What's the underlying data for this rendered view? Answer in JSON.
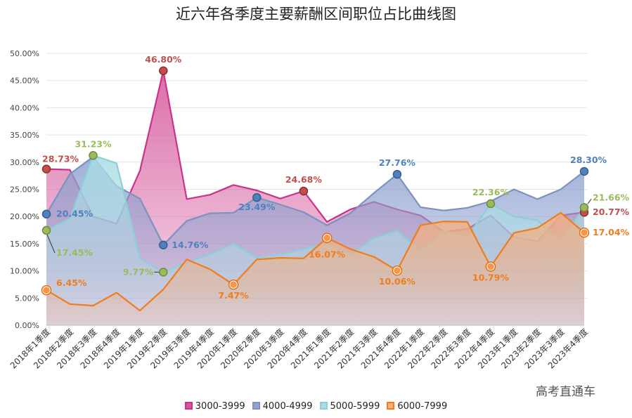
{
  "title": "近六年各季度主要薪酬区间职位占比曲线图",
  "watermark": "高考直通车",
  "chart_data": {
    "type": "area",
    "categories": [
      "2018年1季度",
      "2018年2季度",
      "2018年3季度",
      "2018年4季度",
      "2019年1季度",
      "2019年2季度",
      "2019年3季度",
      "2019年4季度",
      "2020年1季度",
      "2020年2季度",
      "2020年3季度",
      "2020年4季度",
      "2021年1季度",
      "2021年2季度",
      "2021年3季度",
      "2021年4季度",
      "2022年1季度",
      "2022年2季度",
      "2022年3季度",
      "2022年4季度",
      "2023年1季度",
      "2023年2季度",
      "2023年3季度",
      "2023年4季度"
    ],
    "yticks": [
      "0.00%",
      "5.00%",
      "10.00%",
      "15.00%",
      "20.00%",
      "25.00%",
      "30.00%",
      "35.00%",
      "40.00%",
      "45.00%",
      "50.00%"
    ],
    "ylim": [
      0,
      50
    ],
    "grid": true,
    "legend_position": "bottom",
    "series": [
      {
        "name": "3000-3999",
        "color": "#c9338a",
        "fill": "#d4559a",
        "values": [
          28.73,
          28.6,
          20.0,
          18.7,
          28.4,
          46.8,
          23.2,
          24.0,
          25.8,
          24.8,
          23.3,
          24.68,
          19.0,
          21.3,
          22.7,
          21.3,
          20.2,
          17.2,
          17.7,
          20.2,
          16.2,
          15.4,
          20.2,
          20.77
        ]
      },
      {
        "name": "4000-4999",
        "color": "#7d92c2",
        "fill": "#8fa1cf",
        "values": [
          20.45,
          27.8,
          31.0,
          25.6,
          23.3,
          14.76,
          19.2,
          20.6,
          20.7,
          23.49,
          22.2,
          20.8,
          18.4,
          20.6,
          24.3,
          27.76,
          21.7,
          21.1,
          21.6,
          22.8,
          25.0,
          23.2,
          25.0,
          28.3
        ]
      },
      {
        "name": "5000-5999",
        "color": "#8ccfd9",
        "fill": "#a9dde5",
        "values": [
          17.45,
          19.6,
          31.23,
          29.8,
          12.3,
          9.77,
          11.5,
          13.0,
          15.0,
          12.4,
          13.0,
          14.0,
          15.0,
          13.0,
          16.0,
          17.4,
          13.7,
          17.4,
          16.3,
          22.36,
          20.0,
          19.3,
          15.4,
          21.66
        ]
      },
      {
        "name": "6000-7999",
        "color": "#ee7d1e",
        "fill": "#f3b07e",
        "values": [
          6.45,
          3.9,
          3.6,
          6.0,
          2.7,
          6.6,
          12.1,
          10.3,
          7.47,
          12.1,
          12.4,
          12.3,
          16.07,
          14.0,
          12.6,
          10.06,
          18.4,
          19.1,
          19.0,
          10.79,
          17.0,
          17.9,
          20.7,
          17.04
        ]
      }
    ],
    "annotations": [
      {
        "series": 0,
        "index": 0,
        "text": "28.73%",
        "color": "#c0504d"
      },
      {
        "series": 0,
        "index": 5,
        "text": "46.80%",
        "color": "#c0504d"
      },
      {
        "series": 0,
        "index": 11,
        "text": "24.68%",
        "color": "#c0504d"
      },
      {
        "series": 0,
        "index": 23,
        "text": "20.77%",
        "color": "#c0504d"
      },
      {
        "series": 1,
        "index": 0,
        "text": "20.45%",
        "color": "#4f81bd"
      },
      {
        "series": 1,
        "index": 5,
        "text": "14.76%",
        "color": "#4f81bd"
      },
      {
        "series": 1,
        "index": 9,
        "text": "23.49%",
        "color": "#4f81bd"
      },
      {
        "series": 1,
        "index": 15,
        "text": "27.76%",
        "color": "#4f81bd"
      },
      {
        "series": 1,
        "index": 23,
        "text": "28.30%",
        "color": "#4f81bd"
      },
      {
        "series": 2,
        "index": 0,
        "text": "17.45%",
        "color": "#9bbb59"
      },
      {
        "series": 2,
        "index": 2,
        "text": "31.23%",
        "color": "#9bbb59"
      },
      {
        "series": 2,
        "index": 5,
        "text": "9.77%",
        "color": "#9bbb59"
      },
      {
        "series": 2,
        "index": 19,
        "text": "22.36%",
        "color": "#9bbb59"
      },
      {
        "series": 2,
        "index": 23,
        "text": "21.66%",
        "color": "#9bbb59"
      },
      {
        "series": 3,
        "index": 0,
        "text": "6.45%",
        "color": "#ee7d1e"
      },
      {
        "series": 3,
        "index": 8,
        "text": "7.47%",
        "color": "#ee7d1e"
      },
      {
        "series": 3,
        "index": 12,
        "text": "16.07%",
        "color": "#ee7d1e"
      },
      {
        "series": 3,
        "index": 15,
        "text": "10.06%",
        "color": "#ee7d1e"
      },
      {
        "series": 3,
        "index": 19,
        "text": "10.79%",
        "color": "#ee7d1e"
      },
      {
        "series": 3,
        "index": 23,
        "text": "17.04%",
        "color": "#ee7d1e"
      }
    ]
  }
}
